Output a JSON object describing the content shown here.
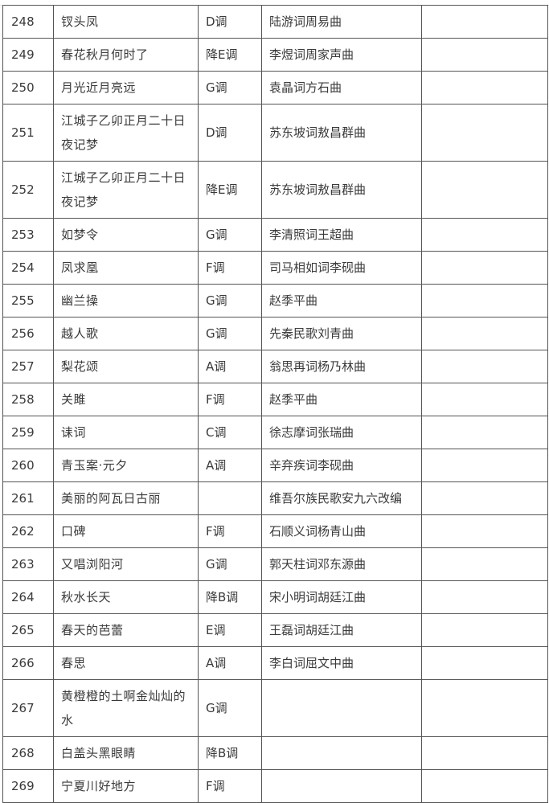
{
  "rows": [
    {
      "no": "248",
      "title": "钗头凤",
      "key": "D调",
      "credits": "陆游词周易曲",
      "note": ""
    },
    {
      "no": "249",
      "title": "春花秋月何时了",
      "key": "降E调",
      "credits": "李煜词周家声曲",
      "note": ""
    },
    {
      "no": "250",
      "title": "月光近月亮远",
      "key": "G调",
      "credits": "袁晶词方石曲",
      "note": ""
    },
    {
      "no": "251",
      "title": "江城子乙卯正月二十日夜记梦",
      "key": "D调",
      "credits": "苏东坡词敖昌群曲",
      "note": ""
    },
    {
      "no": "252",
      "title": "江城子乙卯正月二十日夜记梦",
      "key": "降E调",
      "credits": "苏东坡词敖昌群曲",
      "note": ""
    },
    {
      "no": "253",
      "title": "如梦令",
      "key": "G调",
      "credits": "李清照词王超曲",
      "note": ""
    },
    {
      "no": "254",
      "title": "凤求凰",
      "key": "F调",
      "credits": "司马相如词李砚曲",
      "note": ""
    },
    {
      "no": "255",
      "title": "幽兰操",
      "key": "G调",
      "credits": "赵季平曲",
      "note": ""
    },
    {
      "no": "256",
      "title": "越人歌",
      "key": "G调",
      "credits": "先秦民歌刘青曲",
      "note": ""
    },
    {
      "no": "257",
      "title": "梨花颂",
      "key": "A调",
      "credits": "翁思再词杨乃林曲",
      "note": ""
    },
    {
      "no": "258",
      "title": "关雎",
      "key": "F调",
      "credits": "赵季平曲",
      "note": ""
    },
    {
      "no": "259",
      "title": "诔词",
      "key": "C调",
      "credits": "徐志摩词张瑞曲",
      "note": ""
    },
    {
      "no": "260",
      "title": "青玉案·元夕",
      "key": "A调",
      "credits": "辛弃疾词李砚曲",
      "note": ""
    },
    {
      "no": "261",
      "title": "美丽的阿瓦日古丽",
      "key": "",
      "credits": "维吾尔族民歌安九六改编",
      "note": ""
    },
    {
      "no": "262",
      "title": "口碑",
      "key": "F调",
      "credits": "石顺义词杨青山曲",
      "note": ""
    },
    {
      "no": "263",
      "title": "又唱浏阳河",
      "key": "G调",
      "credits": "郭天柱词邓东源曲",
      "note": ""
    },
    {
      "no": "264",
      "title": "秋水长天",
      "key": "降B调",
      "credits": "宋小明词胡廷江曲",
      "note": ""
    },
    {
      "no": "265",
      "title": "春天的芭蕾",
      "key": "E调",
      "credits": "王磊词胡廷江曲",
      "note": ""
    },
    {
      "no": "266",
      "title": "春思",
      "key": "A调",
      "credits": "李白词屈文中曲",
      "note": ""
    },
    {
      "no": "267",
      "title": "黄橙橙的土啊金灿灿的水",
      "key": "G调",
      "credits": "",
      "note": ""
    },
    {
      "no": "268",
      "title": "白盖头黑眼睛",
      "key": "降B调",
      "credits": "",
      "note": ""
    },
    {
      "no": "269",
      "title": "宁夏川好地方",
      "key": "F调",
      "credits": "",
      "note": ""
    }
  ]
}
